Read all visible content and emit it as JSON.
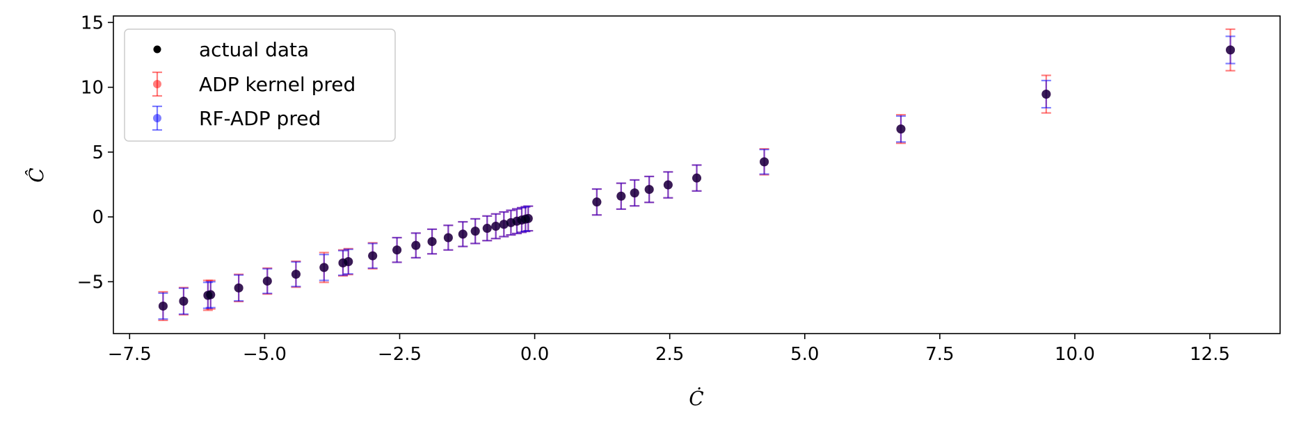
{
  "chart_data": {
    "type": "scatter",
    "title": "",
    "xlabel": "Ċ",
    "ylabel": "Ĉ",
    "xlim": [
      -7.8,
      13.8
    ],
    "ylim": [
      -9,
      15.5
    ],
    "xticks": [
      -7.5,
      -5.0,
      -2.5,
      0.0,
      2.5,
      5.0,
      7.5,
      10.0,
      12.5
    ],
    "xtick_labels": [
      "−7.5",
      "−5.0",
      "−2.5",
      "0.0",
      "2.5",
      "5.0",
      "7.5",
      "10.0",
      "12.5"
    ],
    "yticks": [
      -5,
      0,
      5,
      10,
      15
    ],
    "ytick_labels": [
      "−5",
      "0",
      "5",
      "10",
      "15"
    ],
    "grid": false,
    "legend": {
      "placement": "top-left",
      "entries": [
        "actual data",
        "ADP kernel pred",
        "RF-ADP pred"
      ]
    },
    "colors": {
      "actual": "#000000",
      "adp": "#ff0000",
      "rf": "#0000ff"
    },
    "series": [
      {
        "name": "actual data",
        "x": [
          -6.88,
          -6.5,
          -6.05,
          -6.0,
          -5.48,
          -4.95,
          -4.42,
          -3.9,
          -3.55,
          -3.45,
          -3.0,
          -2.55,
          -2.2,
          -1.9,
          -1.6,
          -1.33,
          -1.1,
          -0.88,
          -0.72,
          -0.57,
          -0.44,
          -0.33,
          -0.24,
          -0.17,
          -0.12,
          1.15,
          1.6,
          1.85,
          2.12,
          2.47,
          3.0,
          4.25,
          6.78,
          9.47,
          12.88
        ],
        "y": [
          -6.88,
          -6.5,
          -6.05,
          -6.0,
          -5.48,
          -4.95,
          -4.42,
          -3.9,
          -3.55,
          -3.45,
          -3.0,
          -2.55,
          -2.2,
          -1.9,
          -1.6,
          -1.33,
          -1.1,
          -0.88,
          -0.72,
          -0.57,
          -0.44,
          -0.33,
          -0.24,
          -0.17,
          -0.12,
          1.15,
          1.6,
          1.85,
          2.12,
          2.47,
          3.0,
          4.25,
          6.78,
          9.47,
          12.88
        ]
      },
      {
        "name": "ADP kernel pred",
        "x": [
          -6.88,
          -6.5,
          -6.05,
          -6.0,
          -5.48,
          -4.95,
          -4.42,
          -3.9,
          -3.55,
          -3.45,
          -3.0,
          -2.55,
          -2.2,
          -1.9,
          -1.6,
          -1.33,
          -1.1,
          -0.88,
          -0.72,
          -0.57,
          -0.44,
          -0.33,
          -0.24,
          -0.17,
          -0.12,
          1.15,
          1.6,
          1.85,
          2.12,
          2.47,
          3.0,
          4.25,
          6.78,
          9.47,
          12.88
        ],
        "y": [
          -6.88,
          -6.5,
          -6.05,
          -6.0,
          -5.48,
          -4.95,
          -4.42,
          -3.9,
          -3.55,
          -3.45,
          -3.0,
          -2.55,
          -2.2,
          -1.9,
          -1.6,
          -1.33,
          -1.1,
          -0.88,
          -0.72,
          -0.57,
          -0.44,
          -0.33,
          -0.24,
          -0.17,
          -0.12,
          1.15,
          1.6,
          1.85,
          2.12,
          2.47,
          3.0,
          4.25,
          6.78,
          9.47,
          12.88
        ],
        "yerr": [
          1.1,
          1.05,
          1.15,
          1.1,
          1.05,
          1.0,
          1.0,
          1.15,
          1.0,
          1.0,
          1.0,
          0.95,
          0.95,
          0.95,
          0.95,
          0.95,
          0.95,
          0.95,
          0.95,
          0.95,
          0.95,
          0.95,
          0.95,
          0.95,
          0.95,
          1.0,
          1.0,
          1.0,
          1.0,
          1.0,
          1.0,
          1.0,
          1.1,
          1.45,
          1.6
        ]
      },
      {
        "name": "RF-ADP pred",
        "x": [
          -6.88,
          -6.5,
          -6.05,
          -6.0,
          -5.48,
          -4.95,
          -4.42,
          -3.9,
          -3.55,
          -3.45,
          -3.0,
          -2.55,
          -2.2,
          -1.9,
          -1.6,
          -1.33,
          -1.1,
          -0.88,
          -0.72,
          -0.57,
          -0.44,
          -0.33,
          -0.24,
          -0.17,
          -0.12,
          1.15,
          1.6,
          1.85,
          2.12,
          2.47,
          3.0,
          4.25,
          6.78,
          9.47,
          12.88
        ],
        "y": [
          -6.88,
          -6.5,
          -6.05,
          -6.0,
          -5.48,
          -4.95,
          -4.42,
          -3.9,
          -3.55,
          -3.45,
          -3.0,
          -2.55,
          -2.2,
          -1.9,
          -1.6,
          -1.33,
          -1.1,
          -0.88,
          -0.72,
          -0.57,
          -0.44,
          -0.33,
          -0.24,
          -0.17,
          -0.12,
          1.15,
          1.6,
          1.85,
          2.12,
          2.47,
          3.0,
          4.25,
          6.78,
          9.47,
          12.88
        ],
        "yerr": [
          1.0,
          1.0,
          1.0,
          1.0,
          1.0,
          0.95,
          0.95,
          1.0,
          0.95,
          0.95,
          0.95,
          0.95,
          0.95,
          0.95,
          0.95,
          0.95,
          0.95,
          0.95,
          0.95,
          0.95,
          0.95,
          0.95,
          0.95,
          0.95,
          0.95,
          1.0,
          1.0,
          1.0,
          1.0,
          1.0,
          1.0,
          0.95,
          1.0,
          1.05,
          1.05
        ]
      }
    ]
  }
}
